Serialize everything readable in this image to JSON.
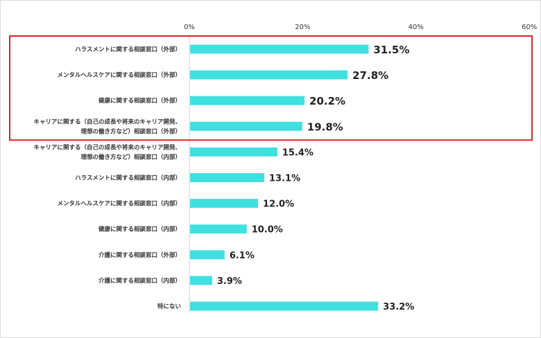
{
  "chart_data": {
    "type": "bar",
    "orientation": "horizontal",
    "xlim": [
      0,
      60
    ],
    "ticks": [
      "0%",
      "20%",
      "40%",
      "60%"
    ],
    "categories": [
      [
        "ハラスメントに関する相談窓口（外部）"
      ],
      [
        "メンタルヘルスケアに関する相談窓口（外部）"
      ],
      [
        "健康に関する相談窓口（外部）"
      ],
      [
        "キャリアに関する（自己の成長や将来のキャリア開発、",
        "理想の働き方など）相談窓口（外部）"
      ],
      [
        "キャリアに関する（自己の成長や将来のキャリア開発、",
        "理想の働き方など）相談窓口（内部）"
      ],
      [
        "ハラスメントに関する相談窓口（内部）"
      ],
      [
        "メンタルヘルスケアに関する相談窓口（内部）"
      ],
      [
        "健康に関する相談窓口（内部）"
      ],
      [
        "介護に関する相談窓口（外部）"
      ],
      [
        "介護に関する相談窓口（内部）"
      ],
      [
        "特にない"
      ]
    ],
    "values": [
      31.5,
      27.8,
      20.2,
      19.8,
      15.4,
      13.1,
      12.0,
      10.0,
      6.1,
      3.9,
      33.2
    ],
    "value_labels": [
      "31.5%",
      "27.8%",
      "20.2%",
      "19.8%",
      "15.4%",
      "13.1%",
      "12.0%",
      "10.0%",
      "6.1%",
      "3.9%",
      "33.2%"
    ],
    "highlighted_count": 4,
    "grid": false,
    "colors": {
      "bar": "#40e0e0",
      "highlight_border": "#e02020",
      "axis_line": "#d0d0d0"
    }
  }
}
